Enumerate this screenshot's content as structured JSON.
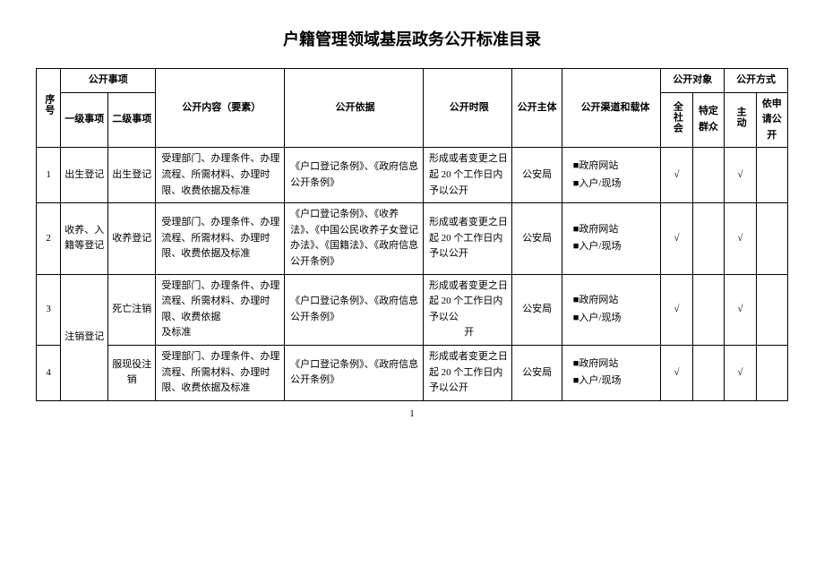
{
  "title": "户籍管理领域基层政务公开标准目录",
  "page_number": "1",
  "headers": {
    "seq": "序号",
    "item": "公开事项",
    "item_l1": "一级事项",
    "item_l2": "二级事项",
    "content": "公开内容（要素）",
    "basis": "公开依据",
    "time": "公开时限",
    "subject": "公开主体",
    "channel": "公开渠道和载体",
    "object": "公开对象",
    "obj1": "全社会",
    "obj2": "特定群众",
    "method": "公开方式",
    "m1": "主动",
    "m2": "依申请公开"
  },
  "channels": {
    "site": "■政府网站",
    "onsite": "■入户/现场"
  },
  "checkmark": "√",
  "groups": [
    {
      "l1": "出生登记"
    },
    {
      "l1": "收养、入籍等登记"
    },
    {
      "l1": "注销登记"
    }
  ],
  "rows": [
    {
      "seq": "1",
      "l2": "出生登记",
      "content": "受理部门、办理条件、办理流程、所需材料、办理时限、收费依据及标准",
      "basis": "《户口登记条例》、《政府信息公开条例》",
      "time": "形成或者变更之日起 20 个工作日内予以公开",
      "subject": "公安局",
      "obj1": "√",
      "obj2": "",
      "m1": "√",
      "m2": ""
    },
    {
      "seq": "2",
      "l2": "收养登记",
      "content": "受理部门、办理条件、办理流程、所需材料、办理时限、收费依据及标准",
      "basis": "《户口登记条例》、《收养法》、《中国公民收养子女登记办法》、《国籍法》、《政府信息公开条例》",
      "time": "形成或者变更之日起 20 个工作日内予以公开",
      "subject": "公安局",
      "obj1": "√",
      "obj2": "",
      "m1": "√",
      "m2": ""
    },
    {
      "seq": "3",
      "l2": "死亡注销",
      "content_a": "受理部门、办理条件、办理流程、所需材料、办理时限、收费依据",
      "content_b": "及标准",
      "basis": "《户口登记条例》、《政府信息公开条例》",
      "time_a": "形成或者变更之日起 20 个工作日内予以公",
      "time_b": "开",
      "subject": "公安局",
      "obj1": "√",
      "obj2": "",
      "m1": "√",
      "m2": ""
    },
    {
      "seq": "4",
      "l2": "服现役注销",
      "content": "受理部门、办理条件、办理流程、所需材料、办理时限、收费依据及标准",
      "basis": "《户口登记条例》、《政府信息公开条例》",
      "time": "形成或者变更之日起 20 个工作日内予以公开",
      "subject": "公安局",
      "obj1": "√",
      "obj2": "",
      "m1": "√",
      "m2": ""
    }
  ]
}
